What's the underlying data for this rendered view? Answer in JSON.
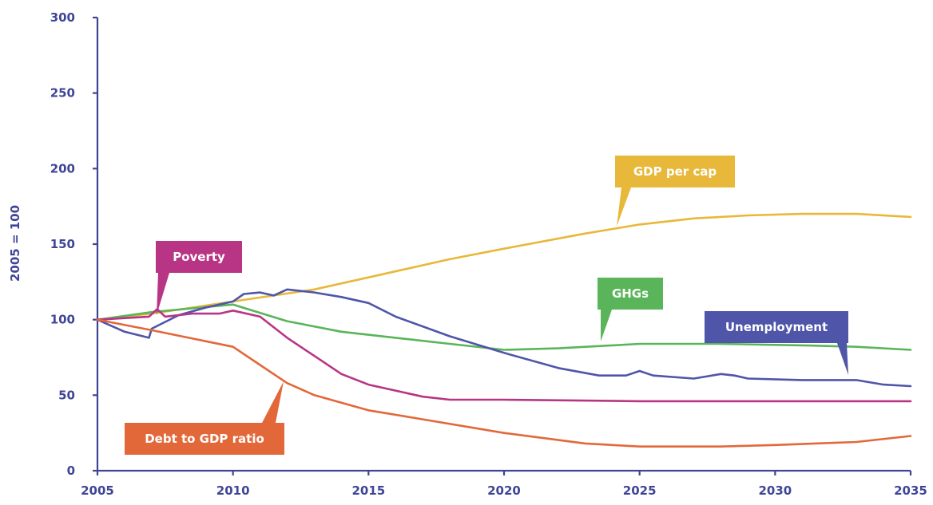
{
  "chart_data": {
    "type": "line",
    "title": "",
    "xlabel": "",
    "ylabel": "2005 = 100",
    "xlim": [
      2005,
      2035
    ],
    "ylim": [
      0,
      300
    ],
    "x_ticks": [
      "2005",
      "2010",
      "2015",
      "2020",
      "2025",
      "2030",
      "2035"
    ],
    "y_ticks": [
      "0",
      "50",
      "100",
      "150",
      "200",
      "250",
      "300"
    ],
    "grid": false,
    "legend": "callouts",
    "series": [
      {
        "name": "GDP per cap",
        "color": "#e8b83a",
        "x": [
          2005,
          2007,
          2010,
          2013,
          2015,
          2018,
          2020,
          2023,
          2025,
          2027,
          2029,
          2031,
          2033,
          2035
        ],
        "y": [
          100,
          104,
          112,
          120,
          128,
          140,
          147,
          157,
          163,
          167,
          169,
          170,
          170,
          168
        ]
      },
      {
        "name": "GHGs",
        "color": "#5ab55a",
        "x": [
          2005,
          2007,
          2010,
          2012,
          2014,
          2016,
          2018,
          2020,
          2022,
          2024,
          2025,
          2028,
          2031,
          2033,
          2035
        ],
        "y": [
          100,
          105,
          110,
          99,
          92,
          88,
          84,
          80,
          81,
          83,
          84,
          84,
          83,
          82,
          80
        ]
      },
      {
        "name": "Unemployment",
        "color": "#4f55a8",
        "x": [
          2005,
          2006,
          2006.9,
          2007,
          2008,
          2009,
          2010,
          2010.4,
          2011,
          2011.5,
          2012,
          2013,
          2014,
          2015,
          2016,
          2018,
          2020,
          2022,
          2023.5,
          2024.5,
          2025,
          2025.5,
          2027,
          2028,
          2028.5,
          2029,
          2031,
          2033,
          2034,
          2035
        ],
        "y": [
          100,
          92,
          88,
          94,
          103,
          108,
          112,
          117,
          118,
          116,
          120,
          118,
          115,
          111,
          102,
          89,
          78,
          68,
          63,
          63,
          66,
          63,
          61,
          64,
          63,
          61,
          60,
          60,
          57,
          56
        ]
      },
      {
        "name": "Poverty",
        "color": "#b83585",
        "x": [
          2005,
          2006.9,
          2007.2,
          2007.5,
          2008.5,
          2009.5,
          2010,
          2011,
          2012,
          2013,
          2014,
          2015,
          2017,
          2018,
          2020,
          2025,
          2030,
          2035
        ],
        "y": [
          100,
          102,
          107,
          102,
          104,
          104,
          106,
          102,
          88,
          76,
          64,
          57,
          49,
          47,
          47,
          46,
          46,
          46
        ]
      },
      {
        "name": "Debt to GDP ratio",
        "color": "#e2683a",
        "x": [
          2005,
          2007,
          2010,
          2011,
          2012,
          2013,
          2015,
          2017,
          2020,
          2023,
          2025,
          2028,
          2030,
          2033,
          2035
        ],
        "y": [
          100,
          93,
          82,
          70,
          58,
          50,
          40,
          34,
          25,
          18,
          16,
          16,
          17,
          19,
          23
        ]
      }
    ],
    "annotations": [
      {
        "text": "GDP per cap",
        "series": "GDP per cap"
      },
      {
        "text": "Poverty",
        "series": "Poverty"
      },
      {
        "text": "GHGs",
        "series": "GHGs"
      },
      {
        "text": "Unemployment",
        "series": "Unemployment"
      },
      {
        "text": "Debt to GDP ratio",
        "series": "Debt to GDP ratio"
      }
    ]
  }
}
